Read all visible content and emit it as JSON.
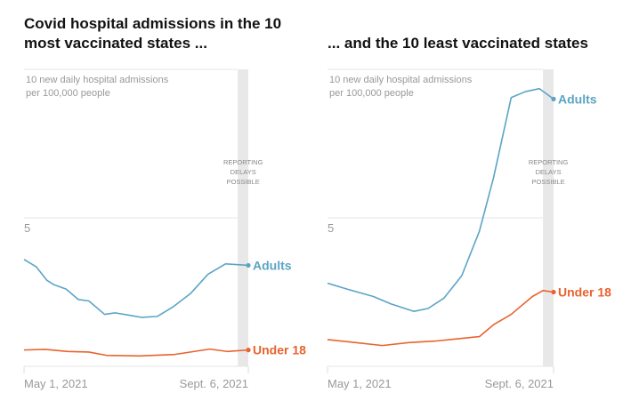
{
  "chart_data": [
    {
      "type": "line",
      "title": "Covid hospital admissions in the 10 most vaccinated states ...",
      "ylabel_line1": "10 new daily hospital admissions",
      "ylabel_line2": "per 100,000 people",
      "ylim": [
        0,
        10
      ],
      "y_tick": "5",
      "x_ticks": [
        "May 1, 2021",
        "Sept. 6, 2021"
      ],
      "xlim_days": [
        0,
        128
      ],
      "annotation": [
        "REPORTING",
        "DELAYS",
        "POSSIBLE"
      ],
      "shaded_from_day": 122,
      "series": [
        {
          "name": "Adults",
          "color": "#5ba4c5",
          "x": [
            0,
            7,
            13,
            17,
            24,
            31,
            37,
            46,
            52,
            62,
            67,
            76,
            85,
            95,
            105,
            115,
            128
          ],
          "y": [
            3.6,
            3.35,
            2.9,
            2.75,
            2.6,
            2.25,
            2.2,
            1.75,
            1.8,
            1.7,
            1.65,
            1.68,
            2.0,
            2.45,
            3.1,
            3.45,
            3.4
          ]
        },
        {
          "name": "Under 18",
          "color": "#e8632f",
          "x": [
            0,
            12,
            25,
            37,
            47,
            66,
            86,
            106,
            116,
            128
          ],
          "y": [
            0.55,
            0.57,
            0.5,
            0.48,
            0.37,
            0.35,
            0.4,
            0.58,
            0.5,
            0.55
          ]
        }
      ]
    },
    {
      "type": "line",
      "title": "... and the 10 least vaccinated states",
      "ylabel_line1": "10 new daily hospital admissions",
      "ylabel_line2": "per 100,000 people",
      "ylim": [
        0,
        10
      ],
      "y_tick": "5",
      "x_ticks": [
        "May 1, 2021",
        "Sept. 6, 2021"
      ],
      "xlim_days": [
        0,
        128
      ],
      "annotation": [
        "REPORTING",
        "DELAYS",
        "POSSIBLE"
      ],
      "shaded_from_day": 122,
      "series": [
        {
          "name": "Adults",
          "color": "#5ba4c5",
          "x": [
            0,
            11,
            26,
            36,
            49,
            57,
            66,
            76,
            86,
            94,
            104,
            112,
            120,
            128
          ],
          "y": [
            2.8,
            2.6,
            2.35,
            2.1,
            1.85,
            1.95,
            2.3,
            3.05,
            4.55,
            6.35,
            9.05,
            9.25,
            9.35,
            9.0
          ]
        },
        {
          "name": "Under 18",
          "color": "#e8632f",
          "x": [
            0,
            16,
            31,
            46,
            61,
            86,
            94,
            104,
            116,
            122,
            128
          ],
          "y": [
            0.9,
            0.8,
            0.7,
            0.8,
            0.85,
            1.0,
            1.4,
            1.75,
            2.35,
            2.55,
            2.5
          ]
        }
      ]
    }
  ]
}
